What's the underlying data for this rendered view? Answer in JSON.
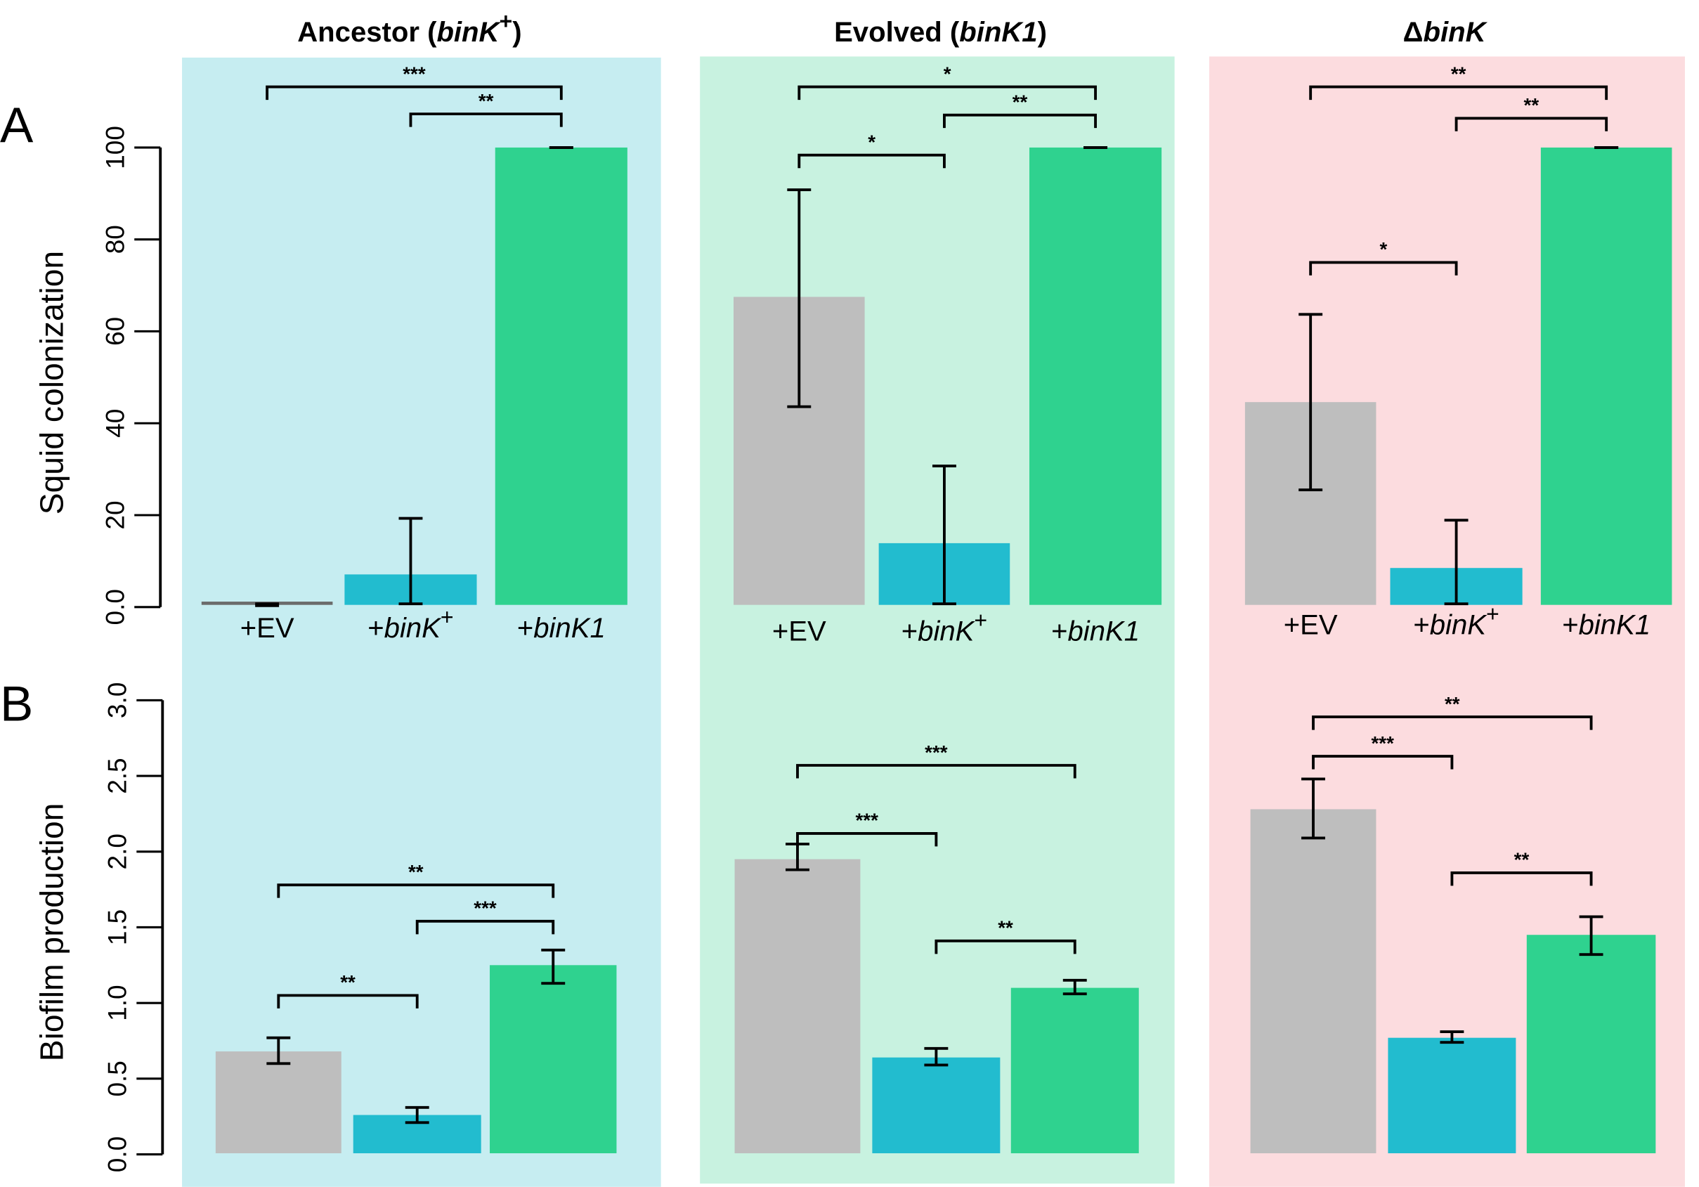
{
  "figure": {
    "panel_letters": [
      "A",
      "B"
    ],
    "column_titles": [
      {
        "plain": "Ancestor (",
        "italic": "binK",
        "sup": "+",
        "close": ")"
      },
      {
        "plain": "Evolved (",
        "italic": "binK1",
        "sup": "",
        "close": ")"
      },
      {
        "plain": "Δ",
        "italic": "binK",
        "sup": "",
        "close": ""
      }
    ],
    "categories": [
      {
        "plain": "+EV",
        "italic": "",
        "sup": ""
      },
      {
        "plain": "+",
        "italic": "binK",
        "sup": "+"
      },
      {
        "plain": "+",
        "italic": "binK1",
        "sup": ""
      }
    ],
    "colors": {
      "bars": [
        "#bebebe",
        "#22bccf",
        "#2fd28f"
      ],
      "panel_backgrounds": [
        "#c6edf1",
        "#c8f2e0",
        "#fcdcdf"
      ],
      "ev_bar_ancestor_colonization": "#6b6b6b"
    }
  },
  "chart_data": [
    {
      "type": "bar",
      "panel": "A",
      "ylabel": "Squid colonization",
      "ylim": [
        0,
        100
      ],
      "yticks": [
        "0.0",
        "20",
        "40",
        "60",
        "80",
        "100"
      ],
      "ytick_values": [
        0,
        20,
        40,
        60,
        80,
        100
      ],
      "groups": [
        {
          "title": "Ancestor (binK+)",
          "values": [
            0.5,
            7.1,
            100
          ],
          "err_low": [
            0.3,
            0.7,
            100
          ],
          "err_high": [
            0.7,
            19.3,
            100
          ],
          "significance": [
            {
              "from": 0,
              "to": 2,
              "label": "***",
              "level": 0
            },
            {
              "from": 1,
              "to": 2,
              "label": "**",
              "level": 1
            }
          ]
        },
        {
          "title": "Evolved (binK1)",
          "values": [
            67.5,
            13.9,
            100
          ],
          "err_low": [
            43.6,
            0.7,
            100
          ],
          "err_high": [
            90.8,
            30.7,
            100
          ],
          "significance": [
            {
              "from": 0,
              "to": 2,
              "label": "*",
              "level": 0
            },
            {
              "from": 1,
              "to": 2,
              "label": "**",
              "level": 1
            },
            {
              "from": 0,
              "to": 1,
              "label": "*",
              "level": 2
            }
          ]
        },
        {
          "title": "ΔbinK",
          "values": [
            44.6,
            8.5,
            100
          ],
          "err_low": [
            25.5,
            0.7,
            100
          ],
          "err_high": [
            63.7,
            18.9,
            100
          ],
          "significance": [
            {
              "from": 0,
              "to": 2,
              "label": "**",
              "level": 0
            },
            {
              "from": 1,
              "to": 2,
              "label": "**",
              "level": 1
            },
            {
              "from": 0,
              "to": 1,
              "label": "*",
              "level": 3
            }
          ]
        }
      ]
    },
    {
      "type": "bar",
      "panel": "B",
      "ylabel": "Biofilm production",
      "ylim": [
        0,
        3.0
      ],
      "yticks": [
        "0.0",
        "0.5",
        "1.0",
        "1.5",
        "2.0",
        "2.5",
        "3.0"
      ],
      "ytick_values": [
        0,
        0.5,
        1.0,
        1.5,
        2.0,
        2.5,
        3.0
      ],
      "groups": [
        {
          "title": "Ancestor (binK+)",
          "values": [
            0.68,
            0.26,
            1.25
          ],
          "err_low": [
            0.6,
            0.21,
            1.13
          ],
          "err_high": [
            0.77,
            0.31,
            1.35
          ],
          "significance": [
            {
              "from": 0,
              "to": 2,
              "label": "**",
              "y": 1.78
            },
            {
              "from": 1,
              "to": 2,
              "label": "***",
              "y": 1.54
            },
            {
              "from": 0,
              "to": 1,
              "label": "**",
              "y": 1.05
            }
          ]
        },
        {
          "title": "Evolved (binK1)",
          "values": [
            1.95,
            0.64,
            1.1
          ],
          "err_low": [
            1.88,
            0.59,
            1.06
          ],
          "err_high": [
            2.05,
            0.7,
            1.15
          ],
          "significance": [
            {
              "from": 0,
              "to": 2,
              "label": "***",
              "y": 2.57
            },
            {
              "from": 0,
              "to": 1,
              "label": "***",
              "y": 2.12
            },
            {
              "from": 1,
              "to": 2,
              "label": "**",
              "y": 1.41
            }
          ]
        },
        {
          "title": "ΔbinK",
          "values": [
            2.28,
            0.77,
            1.45
          ],
          "err_low": [
            2.09,
            0.74,
            1.32
          ],
          "err_high": [
            2.48,
            0.81,
            1.57
          ],
          "significance": [
            {
              "from": 0,
              "to": 2,
              "label": "**",
              "y": 2.89
            },
            {
              "from": 0,
              "to": 1,
              "label": "***",
              "y": 2.63
            },
            {
              "from": 1,
              "to": 2,
              "label": "**",
              "y": 1.86
            }
          ]
        }
      ]
    }
  ]
}
